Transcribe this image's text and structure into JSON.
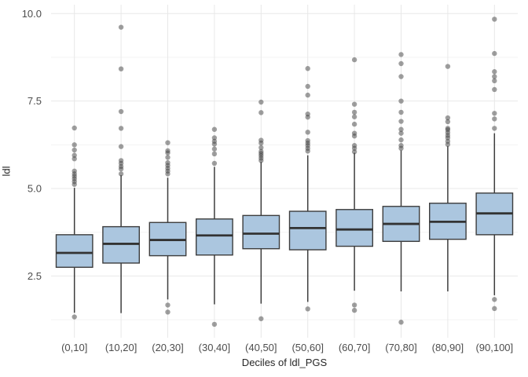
{
  "figure": {
    "background": "#ffffff"
  },
  "y_axis": {
    "title": "ldl",
    "tick_labels": [
      "10.0",
      "7.5",
      "5.0",
      "2.5"
    ],
    "tick_values": [
      10.0,
      7.5,
      5.0,
      2.5
    ],
    "minor_tick_values": [
      8.75,
      6.25,
      3.75,
      1.25
    ]
  },
  "x_axis": {
    "title": "Deciles of ldl_PGS",
    "tick_labels": [
      "(0,10]",
      "(10,20]",
      "(20,30]",
      "(30,40]",
      "(40,50]",
      "(50,60]",
      "(60,70]",
      "(70,80]",
      "(80,90]",
      "(90,100]"
    ]
  },
  "chart_data": {
    "type": "boxplot",
    "title": "",
    "xlabel": "Deciles of ldl_PGS",
    "ylabel": "ldl",
    "ylim": [
      0.7,
      10.3
    ],
    "yticks": [
      2.5,
      5.0,
      7.5,
      10.0
    ],
    "grid": "on",
    "legend": "none",
    "categories": [
      "(0,10]",
      "(10,20]",
      "(20,30]",
      "(30,40]",
      "(40,50]",
      "(50,60]",
      "(60,70]",
      "(70,80]",
      "(80,90]",
      "(90,100]"
    ],
    "boxes": [
      {
        "category": "(0,10]",
        "whisker_low": 1.45,
        "q1": 2.75,
        "median": 3.16,
        "q3": 3.68,
        "whisker_high": 5.02,
        "outliers_low": [
          1.33
        ],
        "outliers_high": [
          5.12,
          5.2,
          5.28,
          5.35,
          5.42,
          5.5,
          5.85,
          5.95,
          6.1,
          6.25,
          6.73
        ]
      },
      {
        "category": "(10,20]",
        "whisker_low": 1.44,
        "q1": 2.87,
        "median": 3.42,
        "q3": 3.91,
        "whisker_high": 5.38,
        "outliers_low": [],
        "outliers_high": [
          5.42,
          5.56,
          5.63,
          5.72,
          5.8,
          6.2,
          6.72,
          7.2,
          8.42,
          9.61
        ]
      },
      {
        "category": "(20,30]",
        "whisker_low": 1.83,
        "q1": 3.08,
        "median": 3.53,
        "q3": 4.03,
        "whisker_high": 5.31,
        "outliers_low": [
          1.47,
          1.67
        ],
        "outliers_high": [
          5.42,
          5.5,
          5.58,
          5.66,
          5.74,
          5.89,
          6.02,
          6.08,
          6.31
        ]
      },
      {
        "category": "(30,40]",
        "whisker_low": 1.69,
        "q1": 3.1,
        "median": 3.66,
        "q3": 4.13,
        "whisker_high": 5.62,
        "outliers_low": [
          1.12
        ],
        "outliers_high": [
          5.72,
          5.99,
          6.13,
          6.27,
          6.35,
          6.45,
          6.69
        ]
      },
      {
        "category": "(40,50]",
        "whisker_low": 1.71,
        "q1": 3.28,
        "median": 3.71,
        "q3": 4.23,
        "whisker_high": 5.76,
        "outliers_low": [
          1.28
        ],
        "outliers_high": [
          5.8,
          5.87,
          5.94,
          6.0,
          6.06,
          6.17,
          6.3,
          6.38,
          7.17,
          7.47
        ]
      },
      {
        "category": "(50,60]",
        "whisker_low": 1.76,
        "q1": 3.25,
        "median": 3.87,
        "q3": 4.35,
        "whisker_high": 5.95,
        "outliers_low": [
          1.56
        ],
        "outliers_high": [
          6.07,
          6.15,
          6.23,
          6.3,
          6.37,
          6.61,
          7.04,
          7.13,
          7.67,
          7.92,
          8.43
        ]
      },
      {
        "category": "(60,70]",
        "whisker_low": 2.08,
        "q1": 3.35,
        "median": 3.83,
        "q3": 4.4,
        "whisker_high": 6.02,
        "outliers_low": [
          1.52,
          1.67
        ],
        "outliers_high": [
          6.05,
          6.15,
          6.23,
          6.5,
          6.58,
          6.84,
          7.05,
          7.18,
          7.41,
          8.68
        ]
      },
      {
        "category": "(70,80]",
        "whisker_low": 2.06,
        "q1": 3.49,
        "median": 3.99,
        "q3": 4.49,
        "whisker_high": 6.09,
        "outliers_low": [
          1.18
        ],
        "outliers_high": [
          6.15,
          6.23,
          6.39,
          6.58,
          6.69,
          6.92,
          7.18,
          7.5,
          8.2,
          8.57,
          8.83
        ]
      },
      {
        "category": "(80,90]",
        "whisker_low": 2.06,
        "q1": 3.55,
        "median": 4.05,
        "q3": 4.58,
        "whisker_high": 6.21,
        "outliers_low": [],
        "outliers_high": [
          6.26,
          6.35,
          6.45,
          6.52,
          6.6,
          6.68,
          6.72,
          6.91,
          7.02,
          8.49
        ]
      },
      {
        "category": "(90,100]",
        "whisker_low": 1.95,
        "q1": 3.68,
        "median": 4.29,
        "q3": 4.87,
        "whisker_high": 6.58,
        "outliers_low": [
          1.57,
          1.83
        ],
        "outliers_high": [
          6.72,
          6.99,
          7.15,
          7.83,
          8.08,
          8.2,
          8.34,
          8.86,
          9.84
        ]
      }
    ]
  },
  "style": {
    "box_fill": "#abc6df",
    "box_border": "#3d3d3d",
    "median_color": "#333333",
    "whisker_color": "#3d3d3d",
    "outlier_color": "#404040",
    "outlier_opacity": 0.5,
    "grid_major": "#e8e8e8",
    "grid_minor": "#f3f3f3",
    "tick_label_color": "#4d4d4d",
    "axis_title_color": "#262626"
  }
}
